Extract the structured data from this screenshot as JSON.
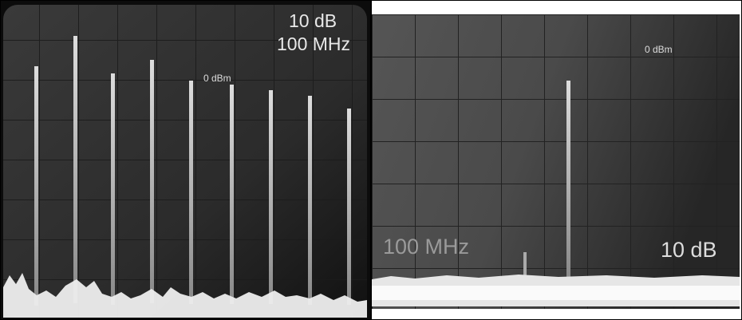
{
  "left_panel": {
    "scale_label": "10 dB",
    "frequency_label": "100 MHz",
    "reference_label": "0 dBm"
  },
  "right_panel": {
    "reference_label": "0 dBm",
    "frequency_label": "100 MHz",
    "scale_label": "10 dB"
  }
}
